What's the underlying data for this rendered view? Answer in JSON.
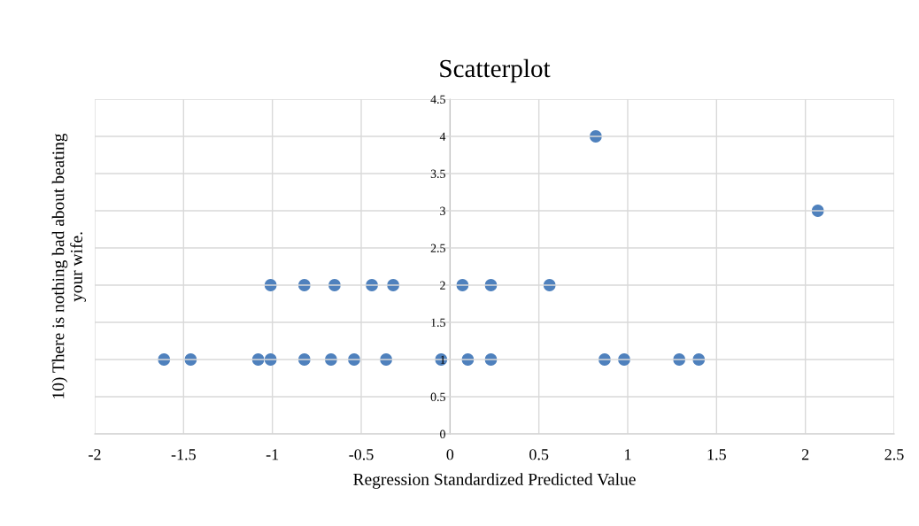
{
  "chart_data": {
    "type": "scatter",
    "title": "Scatterplot",
    "xlabel": "Regression Standardized Predicted Value",
    "ylabel": "10) There is nothing bad about beating\nyour wife.",
    "series": [
      {
        "color": "#4f81bd",
        "x": [
          -1.61,
          -1.46,
          -1.08,
          -1.01,
          -0.82,
          -0.67,
          -0.54,
          -0.36,
          -0.05,
          0.1,
          0.23,
          0.87,
          0.98,
          1.29,
          1.4,
          -1.01,
          -0.82,
          -0.65,
          -0.44,
          -0.32,
          0.07,
          0.23,
          0.56,
          0.82,
          2.07
        ],
        "values": [
          1,
          1,
          1,
          1,
          1,
          1,
          1,
          1,
          1,
          1,
          1,
          1,
          1,
          1,
          1,
          2,
          2,
          2,
          2,
          2,
          2,
          2,
          2,
          4,
          3
        ]
      }
    ],
    "xlim": [
      -2,
      2.5
    ],
    "xticks": [
      -2,
      -1.5,
      -1,
      -0.5,
      0,
      0.5,
      1,
      1.5,
      2,
      2.5
    ],
    "ylim": [
      0,
      4.5
    ],
    "yticks": [
      0,
      0.5,
      1,
      1.5,
      2,
      2.5,
      3,
      3.5,
      4,
      4.5
    ],
    "grid": true,
    "marker": "circle",
    "legend": false
  }
}
